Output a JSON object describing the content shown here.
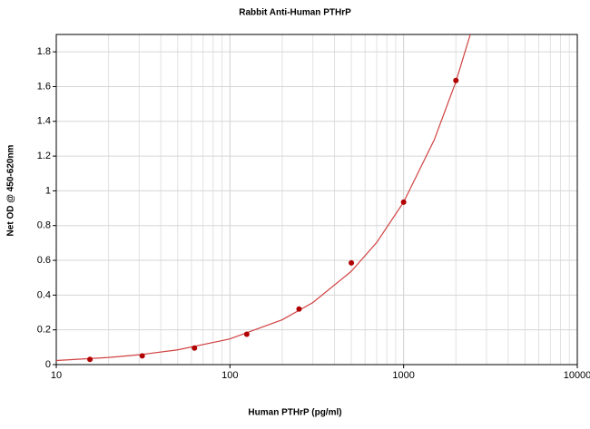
{
  "chart_data": {
    "type": "scatter",
    "title": "Rabbit Anti-Human PTHrP",
    "x_label": "Human PTHrP (pg/ml)",
    "y_label": "Net OD @ 450-620nm",
    "x_log": true,
    "grid": true,
    "xlim": [
      10,
      10000
    ],
    "ylim": [
      0,
      1.9
    ],
    "xticks": [
      10,
      100,
      1000,
      10000
    ],
    "xminorticks": [
      20,
      30,
      40,
      50,
      60,
      70,
      80,
      90,
      200,
      300,
      400,
      500,
      600,
      700,
      800,
      900,
      2000,
      3000,
      4000,
      5000,
      6000,
      7000,
      8000,
      9000
    ],
    "yticks": [
      0,
      0.2,
      0.4,
      0.6,
      0.8,
      1,
      1.2,
      1.4,
      1.6,
      1.8
    ],
    "series": [
      {
        "type": "scatter",
        "color": "#b00000",
        "x": [
          15.625,
          31.25,
          62.5,
          125,
          250,
          500,
          1000,
          2000
        ],
        "values": [
          0.03,
          0.05,
          0.095,
          0.175,
          0.32,
          0.585,
          0.935,
          1.635
        ]
      },
      {
        "type": "line",
        "color": "#d04040",
        "x": [
          10,
          20,
          30,
          50,
          100,
          200,
          300,
          500,
          700,
          1000,
          1500,
          2000,
          2420
        ],
        "values": [
          0.0235,
          0.0409,
          0.0566,
          0.0848,
          0.148,
          0.258,
          0.357,
          0.537,
          0.703,
          0.935,
          1.293,
          1.628,
          1.9
        ]
      }
    ]
  }
}
